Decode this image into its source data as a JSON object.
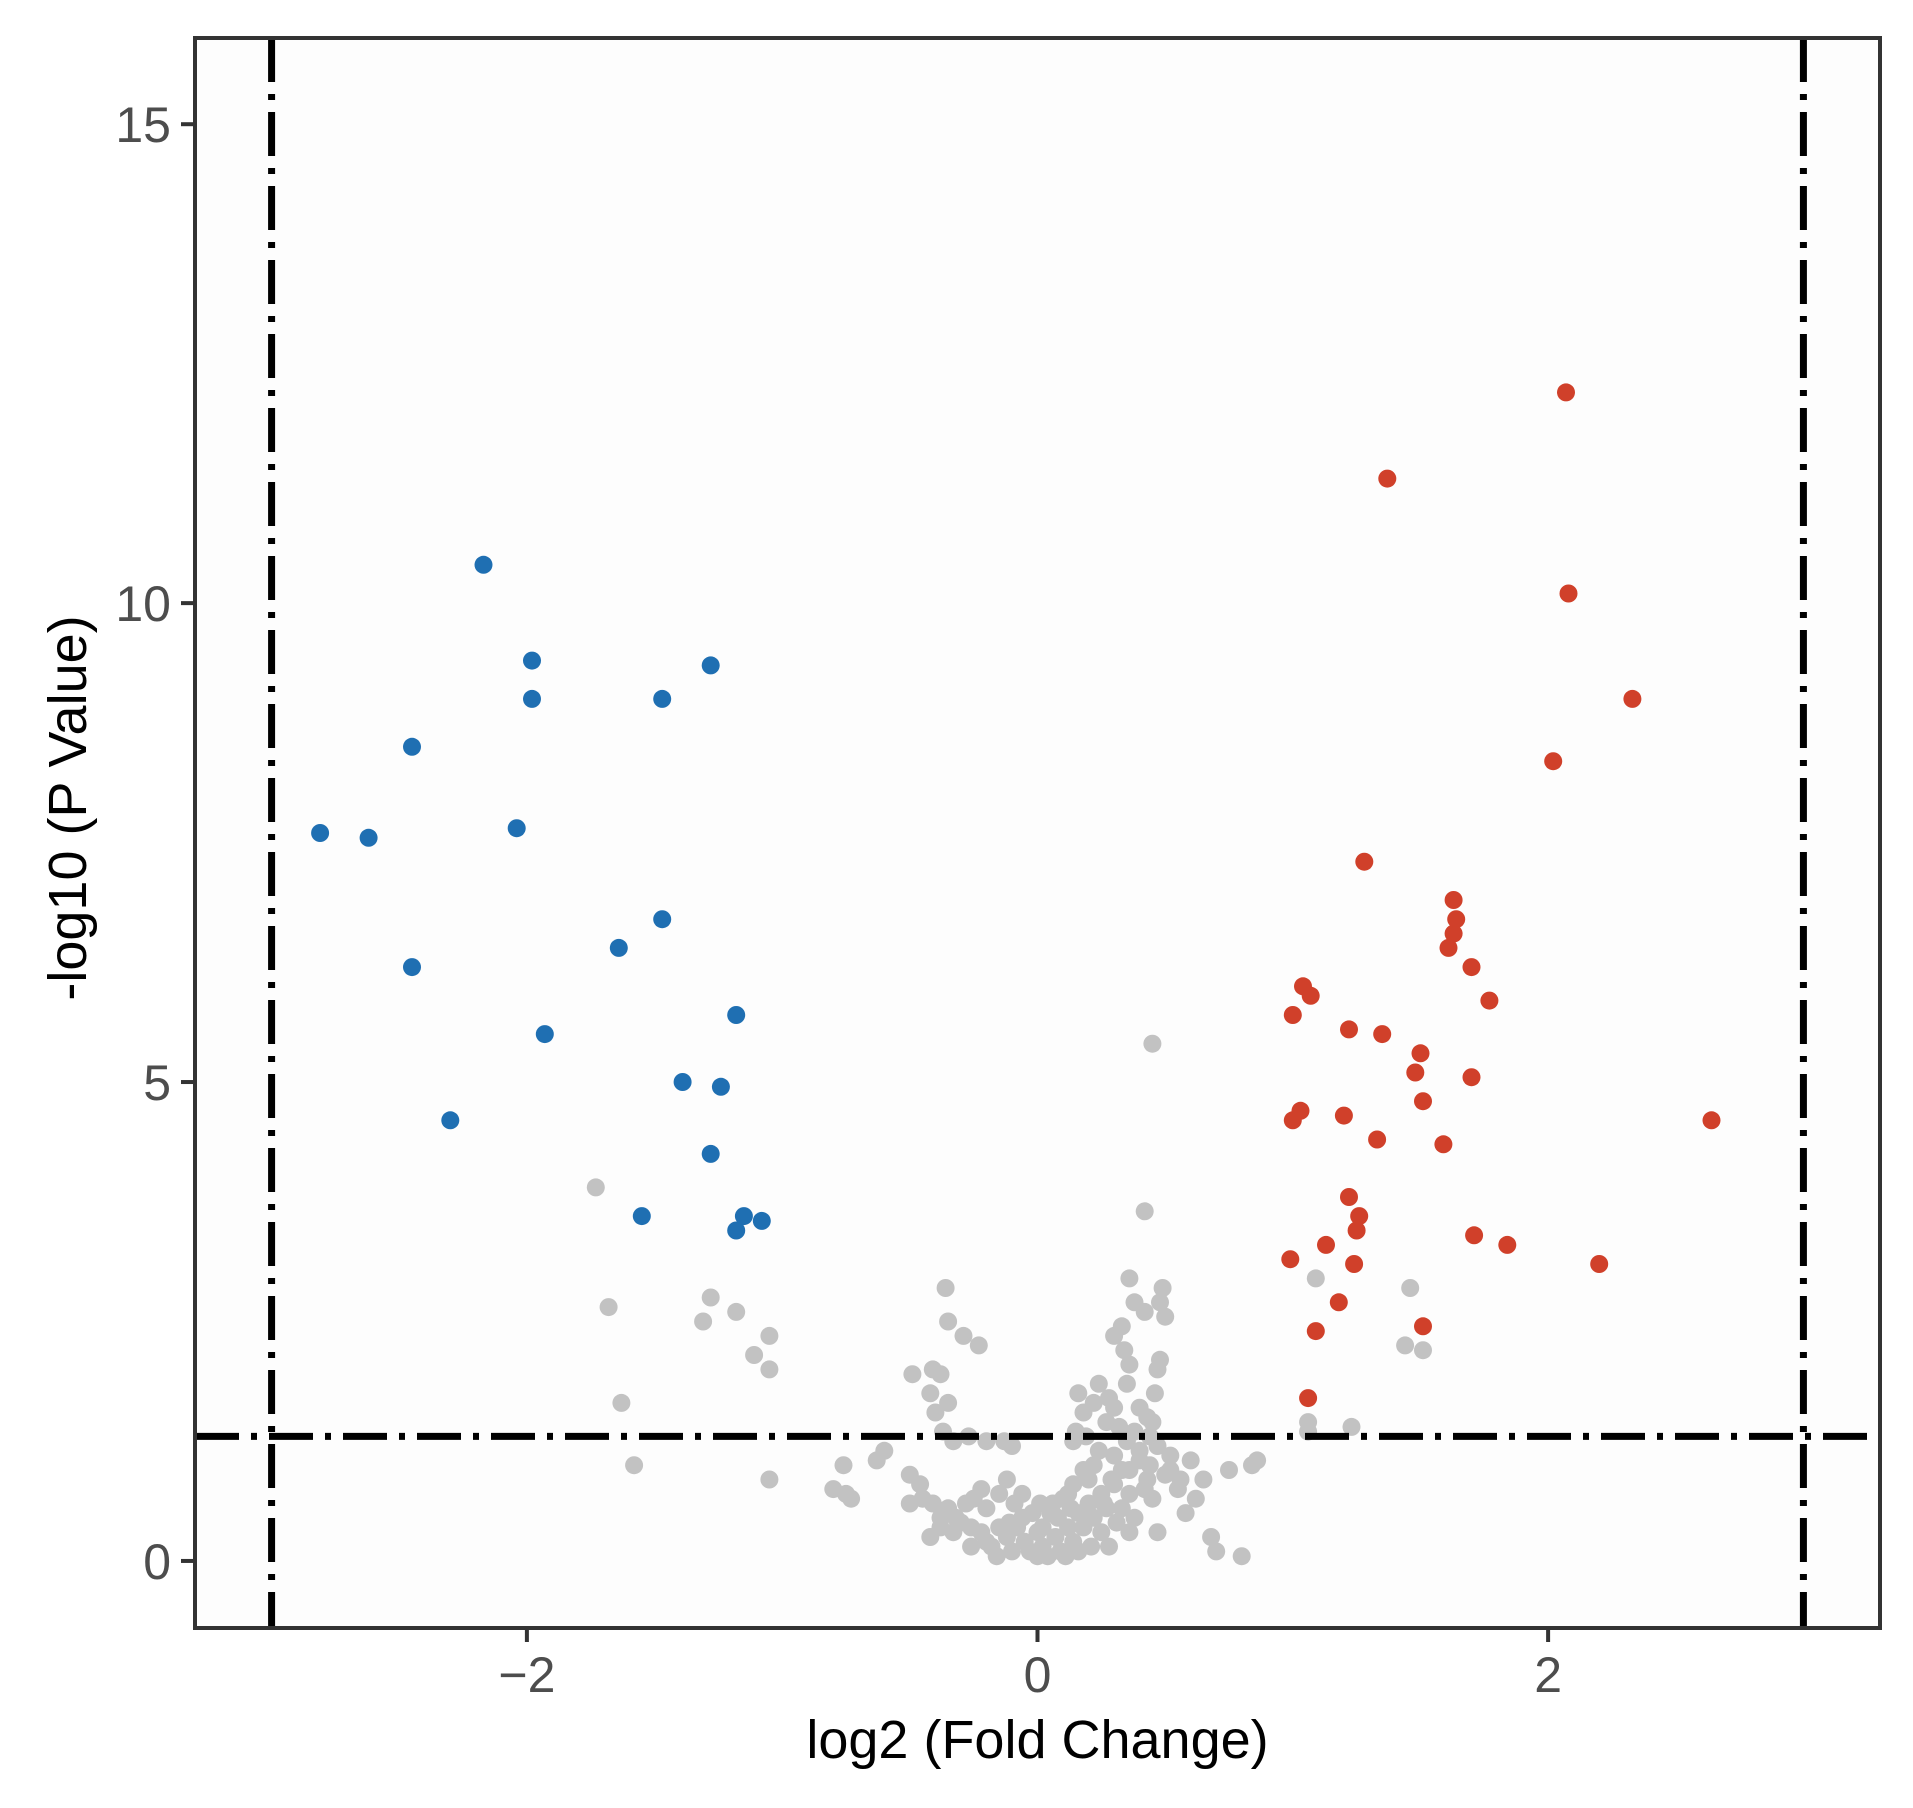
{
  "chart_data": {
    "type": "scatter",
    "title": "",
    "xlabel": "log2 (Fold Change)",
    "ylabel": "-log10 (P Value)",
    "xlim": [
      -3.3,
      3.3
    ],
    "ylim": [
      -0.7,
      15.9
    ],
    "x_ticks": [
      {
        "value": -2,
        "label": "−2"
      },
      {
        "value": 0,
        "label": "0"
      },
      {
        "value": 2,
        "label": "2"
      }
    ],
    "y_ticks": [
      {
        "value": 0,
        "label": "0"
      },
      {
        "value": 5,
        "label": "5"
      },
      {
        "value": 10,
        "label": "10"
      },
      {
        "value": 15,
        "label": "15"
      }
    ],
    "grid": false,
    "legend": "none",
    "colors": {
      "down": "#1f6fb2",
      "up": "#d0402a",
      "ns": "#c2c2c2",
      "threshold": "#000000",
      "panel_background": "#fdfdfd"
    },
    "thresholds": {
      "log2fc": [
        -3,
        3
      ],
      "neg_log10_p": 1.3
    },
    "series": [
      {
        "key": "down",
        "points": [
          [
            -2.81,
            7.6
          ],
          [
            -2.62,
            7.55
          ],
          [
            -2.45,
            8.5
          ],
          [
            -2.45,
            6.2
          ],
          [
            -2.3,
            4.6
          ],
          [
            -2.17,
            10.4
          ],
          [
            -2.04,
            7.65
          ],
          [
            -1.98,
            9.4
          ],
          [
            -1.98,
            9.0
          ],
          [
            -1.93,
            5.5
          ],
          [
            -1.64,
            6.4
          ],
          [
            -1.55,
            3.6
          ],
          [
            -1.47,
            6.7
          ],
          [
            -1.47,
            9.0
          ],
          [
            -1.39,
            5.0
          ],
          [
            -1.28,
            9.35
          ],
          [
            -1.28,
            4.25
          ],
          [
            -1.24,
            4.95
          ],
          [
            -1.18,
            5.7
          ],
          [
            -1.18,
            3.45
          ],
          [
            -1.15,
            3.6
          ],
          [
            -1.08,
            3.55
          ]
        ]
      },
      {
        "key": "up",
        "points": [
          [
            2.07,
            12.2
          ],
          [
            1.37,
            11.3
          ],
          [
            2.08,
            10.1
          ],
          [
            2.33,
            9.0
          ],
          [
            2.02,
            8.35
          ],
          [
            1.28,
            7.3
          ],
          [
            1.63,
            6.9
          ],
          [
            1.64,
            6.7
          ],
          [
            1.63,
            6.55
          ],
          [
            1.61,
            6.4
          ],
          [
            1.7,
            6.2
          ],
          [
            1.77,
            5.85
          ],
          [
            1.04,
            6.0
          ],
          [
            1.07,
            5.9
          ],
          [
            1.0,
            5.7
          ],
          [
            1.22,
            5.55
          ],
          [
            1.35,
            5.5
          ],
          [
            1.5,
            5.3
          ],
          [
            1.48,
            5.1
          ],
          [
            1.7,
            5.05
          ],
          [
            1.51,
            4.8
          ],
          [
            1.03,
            4.7
          ],
          [
            1.0,
            4.6
          ],
          [
            1.2,
            4.65
          ],
          [
            2.64,
            4.6
          ],
          [
            1.33,
            4.4
          ],
          [
            1.59,
            4.35
          ],
          [
            1.22,
            3.8
          ],
          [
            1.26,
            3.6
          ],
          [
            1.25,
            3.45
          ],
          [
            1.71,
            3.4
          ],
          [
            1.84,
            3.3
          ],
          [
            0.99,
            3.15
          ],
          [
            1.24,
            3.1
          ],
          [
            2.2,
            3.1
          ],
          [
            1.13,
            3.3
          ],
          [
            1.18,
            2.7
          ],
          [
            1.09,
            2.4
          ],
          [
            1.51,
            2.45
          ],
          [
            1.06,
            1.7
          ]
        ]
      },
      {
        "key": "ns",
        "points": [
          [
            0.45,
            5.4
          ],
          [
            -1.73,
            3.9
          ],
          [
            0.42,
            3.65
          ],
          [
            0.36,
            2.95
          ],
          [
            1.09,
            2.95
          ],
          [
            1.46,
            2.85
          ],
          [
            -1.68,
            2.65
          ],
          [
            -1.28,
            2.75
          ],
          [
            -1.18,
            2.6
          ],
          [
            -1.31,
            2.5
          ],
          [
            -1.05,
            2.35
          ],
          [
            -1.11,
            2.15
          ],
          [
            -1.05,
            2.0
          ],
          [
            1.44,
            2.25
          ],
          [
            1.51,
            2.2
          ],
          [
            -1.63,
            1.65
          ],
          [
            -1.58,
            1.0
          ],
          [
            -1.05,
            0.85
          ],
          [
            1.06,
            1.45
          ],
          [
            1.06,
            1.35
          ],
          [
            1.23,
            1.4
          ],
          [
            -0.36,
            2.85
          ],
          [
            -0.35,
            2.5
          ],
          [
            -0.29,
            2.35
          ],
          [
            -0.23,
            2.25
          ],
          [
            -0.41,
            2.0
          ],
          [
            -0.38,
            1.95
          ],
          [
            -0.49,
            1.95
          ],
          [
            -0.42,
            1.75
          ],
          [
            -0.35,
            1.65
          ],
          [
            -0.4,
            1.55
          ],
          [
            -0.37,
            1.35
          ],
          [
            -0.33,
            1.25
          ],
          [
            -0.27,
            1.3
          ],
          [
            -0.2,
            1.25
          ],
          [
            -0.13,
            1.25
          ],
          [
            -0.1,
            1.2
          ],
          [
            -0.6,
            1.15
          ],
          [
            -0.63,
            1.05
          ],
          [
            -0.76,
            1.0
          ],
          [
            -0.8,
            0.75
          ],
          [
            -0.75,
            0.7
          ],
          [
            -0.73,
            0.65
          ],
          [
            -0.46,
            0.8
          ],
          [
            -0.5,
            0.9
          ],
          [
            -0.45,
            0.65
          ],
          [
            -0.5,
            0.6
          ],
          [
            -0.41,
            0.6
          ],
          [
            -0.35,
            0.55
          ],
          [
            -0.38,
            0.45
          ],
          [
            -0.3,
            0.4
          ],
          [
            -0.33,
            0.3
          ],
          [
            -0.26,
            0.35
          ],
          [
            -0.22,
            0.3
          ],
          [
            -0.2,
            0.2
          ],
          [
            -0.15,
            0.35
          ],
          [
            -0.18,
            0.15
          ],
          [
            -0.12,
            0.25
          ],
          [
            -0.1,
            0.1
          ],
          [
            -0.08,
            0.35
          ],
          [
            -0.05,
            0.2
          ],
          [
            -0.03,
            0.1
          ],
          [
            0.0,
            0.3
          ],
          [
            0.02,
            0.15
          ],
          [
            0.04,
            0.05
          ],
          [
            0.07,
            0.25
          ],
          [
            0.09,
            0.1
          ],
          [
            0.12,
            0.35
          ],
          [
            0.14,
            0.2
          ],
          [
            0.16,
            0.5
          ],
          [
            0.18,
            0.35
          ],
          [
            0.2,
            0.6
          ],
          [
            0.22,
            0.45
          ],
          [
            0.25,
            0.7
          ],
          [
            0.27,
            0.55
          ],
          [
            0.29,
            0.85
          ],
          [
            0.31,
            0.4
          ],
          [
            0.33,
            0.95
          ],
          [
            0.36,
            0.7
          ],
          [
            0.38,
            0.45
          ],
          [
            0.4,
            1.05
          ],
          [
            0.43,
            0.85
          ],
          [
            0.45,
            0.65
          ],
          [
            0.47,
            0.3
          ],
          [
            0.5,
            0.9
          ],
          [
            0.52,
            1.1
          ],
          [
            0.55,
            0.75
          ],
          [
            0.58,
            0.5
          ],
          [
            0.6,
            1.05
          ],
          [
            0.62,
            0.65
          ],
          [
            0.65,
            0.85
          ],
          [
            0.68,
            0.25
          ],
          [
            0.7,
            0.1
          ],
          [
            0.75,
            0.95
          ],
          [
            0.8,
            0.05
          ],
          [
            0.84,
            1.0
          ],
          [
            0.86,
            1.05
          ],
          [
            -0.12,
            0.85
          ],
          [
            -0.2,
            0.55
          ],
          [
            -0.25,
            0.65
          ],
          [
            0.05,
            0.5
          ],
          [
            0.1,
            0.65
          ],
          [
            0.14,
            0.8
          ],
          [
            0.18,
            0.95
          ],
          [
            0.22,
            1.0
          ],
          [
            0.26,
            0.6
          ],
          [
            0.3,
            1.1
          ],
          [
            0.35,
            1.25
          ],
          [
            0.38,
            1.35
          ],
          [
            0.4,
            1.6
          ],
          [
            0.43,
            1.5
          ],
          [
            0.46,
            1.75
          ],
          [
            0.47,
            2.0
          ],
          [
            0.48,
            2.1
          ],
          [
            0.5,
            2.55
          ],
          [
            0.48,
            2.7
          ],
          [
            0.49,
            2.85
          ],
          [
            0.42,
            2.6
          ],
          [
            0.38,
            2.7
          ],
          [
            0.33,
            2.45
          ],
          [
            0.3,
            2.35
          ],
          [
            0.34,
            2.2
          ],
          [
            0.36,
            2.05
          ],
          [
            0.35,
            1.85
          ],
          [
            0.28,
            1.7
          ],
          [
            0.3,
            1.6
          ],
          [
            0.27,
            1.45
          ],
          [
            0.24,
            1.85
          ],
          [
            0.22,
            1.65
          ],
          [
            0.18,
            1.55
          ],
          [
            0.15,
            1.35
          ],
          [
            0.16,
            1.75
          ],
          [
            0.14,
            1.25
          ],
          [
            0.44,
            1.3
          ],
          [
            0.4,
            1.15
          ],
          [
            0.44,
            1.0
          ],
          [
            0.47,
            1.2
          ],
          [
            0.52,
            0.95
          ],
          [
            0.56,
            0.85
          ],
          [
            0.42,
            0.75
          ],
          [
            0.3,
            0.8
          ],
          [
            0.2,
            0.85
          ],
          [
            0.12,
            0.7
          ],
          [
            0.08,
            0.45
          ],
          [
            0.02,
            0.35
          ],
          [
            -0.02,
            0.5
          ],
          [
            -0.06,
            0.45
          ],
          [
            -0.09,
            0.6
          ],
          [
            -0.15,
            0.7
          ],
          [
            -0.22,
            0.75
          ],
          [
            -0.28,
            0.6
          ],
          [
            -0.32,
            0.45
          ],
          [
            -0.38,
            0.35
          ],
          [
            -0.42,
            0.25
          ],
          [
            -0.26,
            0.15
          ],
          [
            -0.16,
            0.05
          ],
          [
            0.0,
            0.05
          ],
          [
            0.11,
            0.05
          ],
          [
            0.16,
            0.1
          ],
          [
            0.06,
            0.6
          ],
          [
            -0.06,
            0.7
          ],
          [
            0.33,
            0.55
          ],
          [
            0.36,
            0.3
          ],
          [
            0.25,
            0.3
          ],
          [
            0.28,
            0.15
          ],
          [
            0.21,
            0.15
          ],
          [
            -0.11,
            0.4
          ],
          [
            0.01,
            0.6
          ],
          [
            0.13,
            0.55
          ],
          [
            0.24,
            1.15
          ],
          [
            0.19,
            1.3
          ],
          [
            0.32,
            1.4
          ],
          [
            0.45,
            1.45
          ],
          [
            0.36,
            0.95
          ]
        ]
      }
    ]
  }
}
